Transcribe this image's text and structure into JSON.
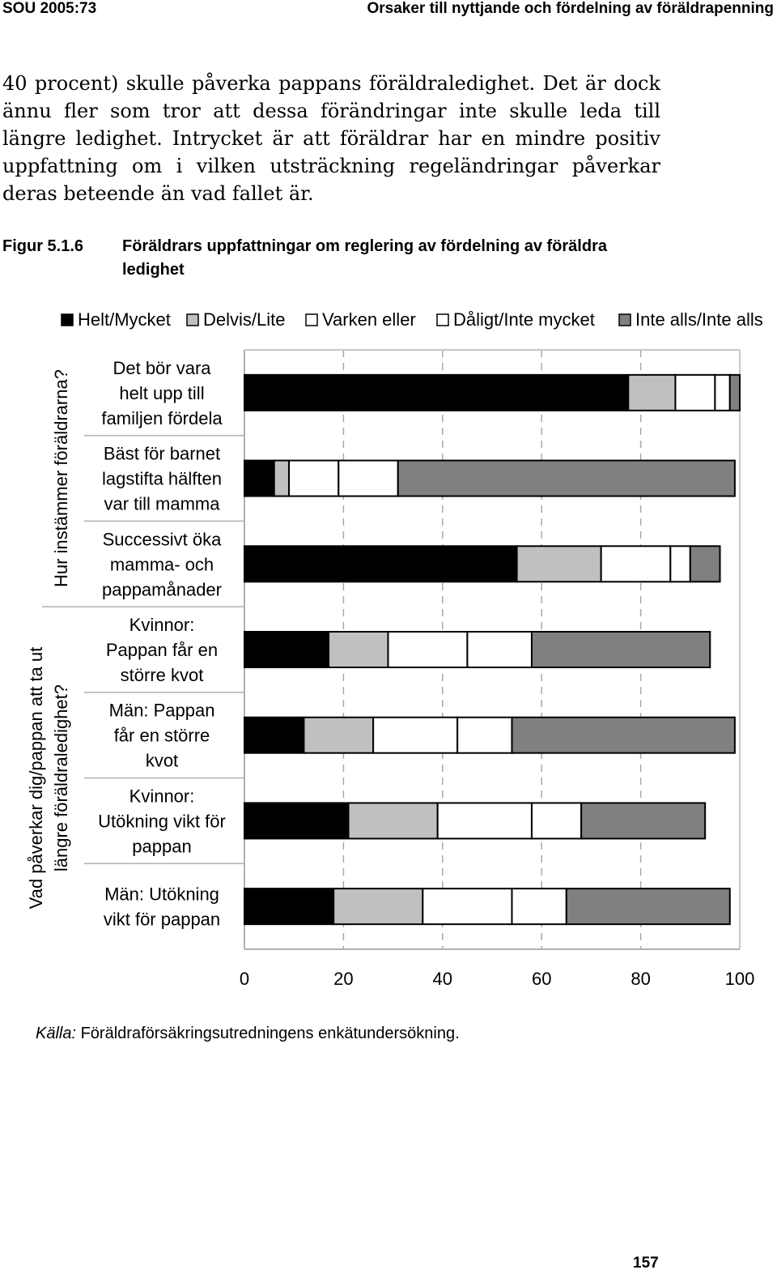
{
  "header": {
    "left": "SOU 2005:73",
    "right": "Orsaker till nyttjande och fördelning av föräldrapenning"
  },
  "body_text": "40 procent) skulle påverka pappans föräldraledighet. Det är dock ännu fler som tror att dessa förändringar inte skulle leda till längre ledighet. Intrycket är att föräldrar har en mindre positiv uppfattning om i vilken utsträckning regeländringar påverkar deras beteende än vad fallet är.",
  "figure": {
    "label": "Figur 5.1.6",
    "title": "Föräldrars uppfattningar om reglering av fördelning av föräldra ledighet"
  },
  "chart_data": {
    "type": "bar",
    "orientation": "horizontal",
    "stacked": true,
    "categories": [
      "Det bör vara helt upp till familjen fördela",
      "Bäst för barnet lagstifta hälften var till mamma",
      "Successivt öka mamma- och pappamånader",
      "Kvinnor: Pappan får en större kvot",
      "Män: Pappan får en större kvot",
      "Kvinnor: Utökning vikt för pappan",
      "Män: Utökning vikt för pappan"
    ],
    "category_lines": [
      [
        "Det bör vara",
        "helt upp till",
        "familjen fördela"
      ],
      [
        "Bäst för barnet",
        "lagstifta hälften",
        "var till mamma"
      ],
      [
        "Successivt öka",
        "mamma- och",
        "pappamånader"
      ],
      [
        "Kvinnor:",
        "Pappan får en",
        "större kvot"
      ],
      [
        "Män: Pappan",
        "får en större",
        "kvot"
      ],
      [
        "Kvinnor:",
        "Utökning vikt för",
        "pappan"
      ],
      [
        "Män: Utökning",
        "vikt för pappan"
      ]
    ],
    "group_labels": [
      {
        "lines": [
          "Hur instämmer föräldrarna?"
        ],
        "categories": [
          0,
          1,
          2
        ]
      },
      {
        "lines": [
          "Vad påverkar dig/pappan att ta ut",
          "längre föräldraledighet?"
        ],
        "categories": [
          3,
          4,
          5,
          6
        ]
      }
    ],
    "series": [
      {
        "name": "Helt/Mycket",
        "color": "#000000",
        "values": [
          77.5,
          6,
          55,
          17,
          12,
          21,
          18
        ]
      },
      {
        "name": "Delvis/Lite",
        "color": "#c0c0c0",
        "values": [
          9.5,
          3,
          17,
          12,
          14,
          18,
          18
        ]
      },
      {
        "name": "Varken eller",
        "color": "#ffffff",
        "values": [
          8,
          10,
          14,
          16,
          17,
          19,
          18
        ]
      },
      {
        "name": "Dåligt/Inte mycket",
        "color": "#ffffff",
        "values": [
          3,
          12,
          4,
          13,
          11,
          10,
          11
        ]
      },
      {
        "name": "Inte alls/Inte alls",
        "color": "#808080",
        "values": [
          2,
          68,
          6,
          36,
          45,
          25,
          33
        ]
      }
    ],
    "xlim": [
      0,
      100
    ],
    "xticks": [
      0,
      20,
      40,
      60,
      80,
      100
    ],
    "grid": true,
    "legend": "top"
  },
  "source": {
    "label": "Källa:",
    "text": "Föräldraförsäkringsutredningens enkätundersökning."
  },
  "page_number": "157"
}
